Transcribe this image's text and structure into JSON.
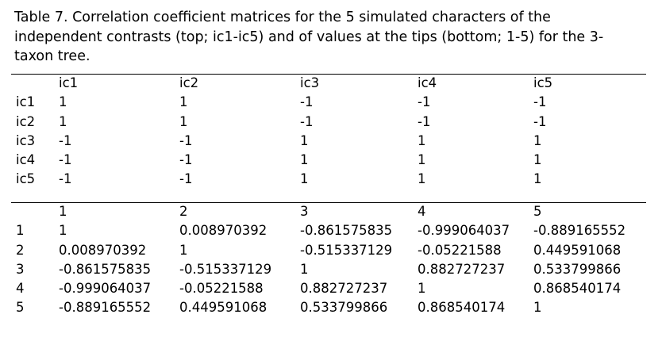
{
  "caption": "Table 7.  Correlation coefficient matrices for the 5 simulated characters of the independent contrasts (top; ic1-ic5) and of values at the tips (bottom; 1-5) for the 3-taxon tree.",
  "top_table": {
    "header": [
      "",
      "ic1",
      "ic2",
      "ic3",
      "ic4",
      "ic5"
    ],
    "rows": [
      [
        "ic1",
        "1",
        "1",
        "-1",
        "-1",
        "-1"
      ],
      [
        "ic2",
        "1",
        "1",
        "-1",
        "-1",
        "-1"
      ],
      [
        "ic3",
        "-1",
        "-1",
        "1",
        "1",
        "1"
      ],
      [
        "ic4",
        "-1",
        "-1",
        "1",
        "1",
        "1"
      ],
      [
        "ic5",
        "-1",
        "-1",
        "1",
        "1",
        "1"
      ]
    ]
  },
  "bottom_table": {
    "header": [
      "",
      "1",
      "2",
      "3",
      "4",
      "5"
    ],
    "rows": [
      [
        "1",
        "1",
        "0.008970392",
        "-0.861575835",
        "-0.999064037",
        "-0.889165552"
      ],
      [
        "2",
        "0.008970392",
        "1",
        "-0.515337129",
        " -0.05221588",
        "0.449591068"
      ],
      [
        "3",
        "-0.861575835",
        "-0.515337129",
        "1",
        " 0.882727237",
        "0.533799866"
      ],
      [
        "4",
        "-0.999064037",
        "-0.05221588",
        "0.882727237",
        "1",
        "0.868540174"
      ],
      [
        "5",
        "-0.889165552",
        "0.449591068",
        "0.533799866",
        " 0.868540174",
        "1"
      ]
    ]
  }
}
